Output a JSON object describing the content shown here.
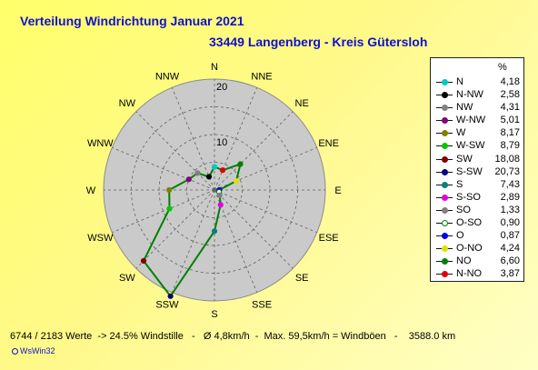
{
  "header": {
    "title": "Verteilung Windrichtung   Januar 2021",
    "location": "33449 Langenberg - Kreis Gütersloh"
  },
  "legend": {
    "unit_header": "%",
    "items": [
      {
        "label": "N",
        "value": "4,18",
        "color": "#00c8c8"
      },
      {
        "label": "N-NW",
        "value": "2,58",
        "color": "#000000"
      },
      {
        "label": "NW",
        "value": "4,31",
        "color": "#808080"
      },
      {
        "label": "W-NW",
        "value": "5,01",
        "color": "#800080"
      },
      {
        "label": "W",
        "value": "8,17",
        "color": "#808000"
      },
      {
        "label": "W-SW",
        "value": "8,79",
        "color": "#00c800"
      },
      {
        "label": "SW",
        "value": "18,08",
        "color": "#800000"
      },
      {
        "label": "S-SW",
        "value": "20,73",
        "color": "#000080"
      },
      {
        "label": "S",
        "value": "7,43",
        "color": "#008080"
      },
      {
        "label": "S-SO",
        "value": "2,89",
        "color": "#e000e0"
      },
      {
        "label": "SO",
        "value": "1,33",
        "color": "#808080"
      },
      {
        "label": "O-SO",
        "value": "0,90",
        "color": "#ffffff"
      },
      {
        "label": "O",
        "value": "0,87",
        "color": "#0000e0"
      },
      {
        "label": "O-NO",
        "value": "4,24",
        "color": "#e0e000"
      },
      {
        "label": "NO",
        "value": "6,60",
        "color": "#008000"
      },
      {
        "label": "N-NO",
        "value": "3,87",
        "color": "#e00000"
      }
    ]
  },
  "footer": {
    "stats": "6744 / 2183 Werte  -> 24.5% Windstille   -   Ø 4,8km/h  -  Max. 59,5km/h = Windböen   -    3588.0 km",
    "credit": "WsWin32"
  },
  "chart_data": {
    "type": "radar",
    "title": "Verteilung Windrichtung   Januar 2021",
    "subtitle": "33449 Langenberg - Kreis Gütersloh",
    "directions": [
      "N",
      "NNE",
      "NE",
      "ENE",
      "E",
      "ESE",
      "SE",
      "SSE",
      "S",
      "SSW",
      "SW",
      "WSW",
      "W",
      "WNW",
      "NW",
      "NNW"
    ],
    "values": [
      4.18,
      3.87,
      6.6,
      4.24,
      0.87,
      0.9,
      1.33,
      2.89,
      7.43,
      20.73,
      18.08,
      8.79,
      8.17,
      5.01,
      4.31,
      2.58
    ],
    "point_colors": [
      "#00c8c8",
      "#e00000",
      "#008000",
      "#e0e000",
      "#0000e0",
      "#ffffff",
      "#808080",
      "#e000e0",
      "#008080",
      "#000080",
      "#800000",
      "#00c800",
      "#808000",
      "#800080",
      "#808080",
      "#000000"
    ],
    "rlim": [
      0,
      20
    ],
    "ring_labels": [
      "10",
      "20"
    ],
    "ring_label_values": [
      10,
      20
    ],
    "line_color": "#008000",
    "grid": true
  }
}
